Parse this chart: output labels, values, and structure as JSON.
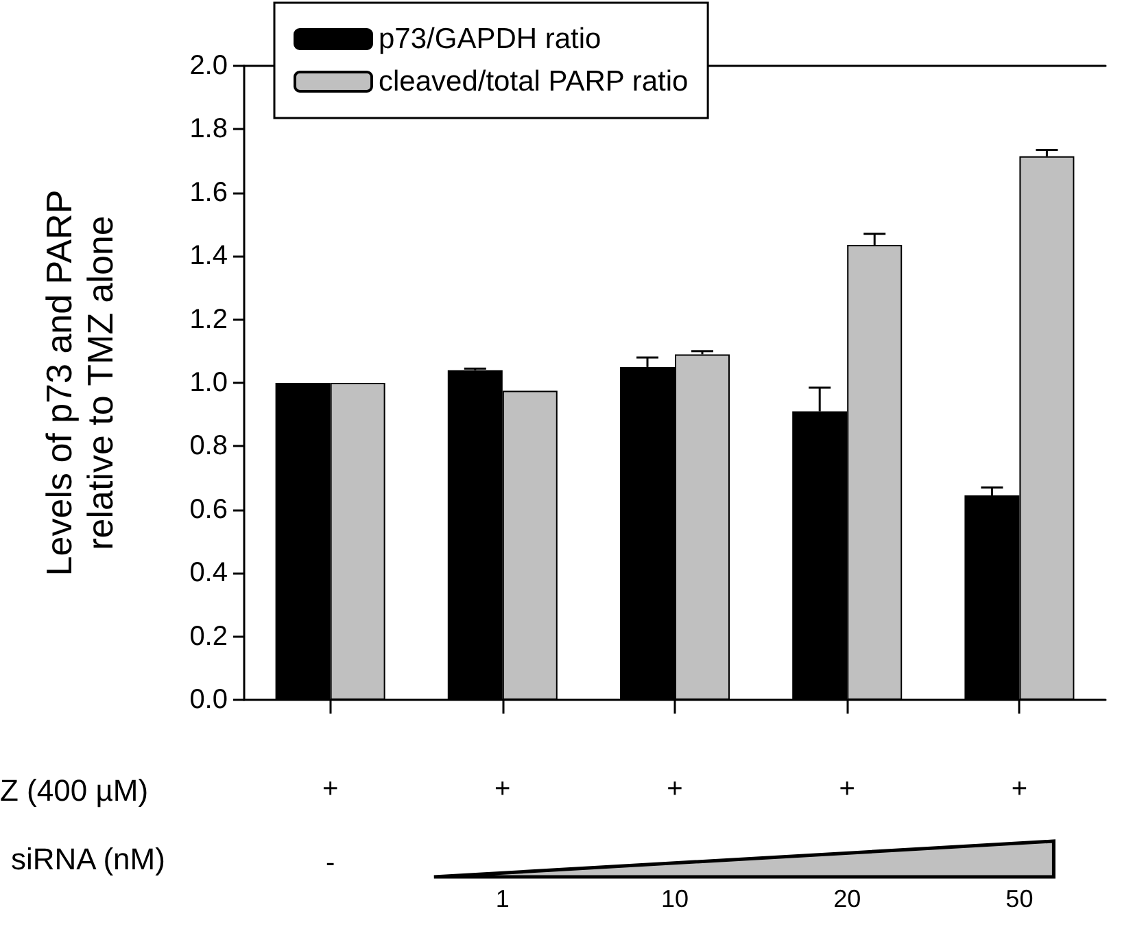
{
  "chart_data": {
    "type": "bar",
    "ylabel": "Levels of p73 and PARP\nrelative to TMZ alone",
    "categories": [
      "+",
      "+",
      "+",
      "+",
      "+"
    ],
    "series": [
      {
        "name": "p73/GAPDH ratio",
        "color": "#000000",
        "values": [
          1.0,
          1.04,
          1.05,
          0.91,
          0.645
        ],
        "errors": [
          null,
          0.005,
          0.03,
          0.075,
          0.025
        ]
      },
      {
        "name": "cleaved/total PARP ratio",
        "color": "#c0c0c0",
        "values": [
          1.0,
          0.975,
          1.09,
          1.435,
          1.715
        ],
        "errors": [
          null,
          null,
          0.01,
          0.035,
          0.02
        ]
      }
    ],
    "ylim": [
      0,
      2.0
    ],
    "yticks": [
      {
        "value": 0,
        "label": "0.0"
      },
      0.2,
      0.4,
      0.6,
      0.8,
      {
        "value": 1,
        "label": "1.0"
      },
      1.2,
      1.4,
      1.6,
      1.8,
      {
        "value": 2,
        "label": "2.0"
      }
    ],
    "grid": false,
    "legend": "top left",
    "annotations": [
      "Z (400 µM)",
      "siRNA (nM)",
      "-",
      "1",
      "10",
      "20",
      "50"
    ]
  }
}
